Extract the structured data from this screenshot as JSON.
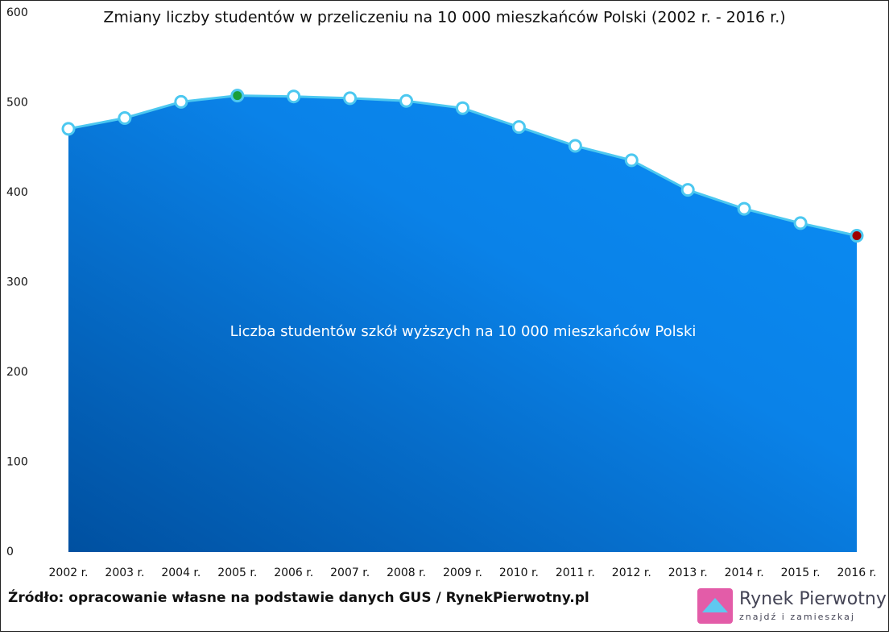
{
  "chart_data": {
    "type": "area",
    "title": "Zmiany liczby studentów w przeliczeniu na 10 000 mieszkańców Polski (2002 r. - 2016 r.)",
    "annotation": "Liczba studentów szkół wyższych na 10 000 mieszkańców Polski",
    "categories": [
      "2002 r.",
      "2003 r.",
      "2004 r.",
      "2005 r.",
      "2006 r.",
      "2007 r.",
      "2008 r.",
      "2009 r.",
      "2010 r.",
      "2011 r.",
      "2012 r.",
      "2013 r.",
      "2014 r.",
      "2015 r.",
      "2016 r."
    ],
    "values": [
      471,
      483,
      501,
      508,
      507,
      505,
      502,
      494,
      473,
      452,
      436,
      403,
      382,
      366,
      352
    ],
    "color": "#0a8af0",
    "line_color": "#4cc8f0",
    "highlight_max_color": "#1a9e3a",
    "highlight_last_color": "#a00000",
    "ylim": [
      0,
      600
    ],
    "yticks": [
      0,
      100,
      200,
      300,
      400,
      500,
      600
    ],
    "grid": false
  },
  "footer": {
    "source": "Źródło: opracowanie własne na podstawie danych GUS / RynekPierwotny.pl",
    "logo_name": "Rynek Pierwotny",
    "logo_tagline": "znajdź i zamieszkaj"
  }
}
